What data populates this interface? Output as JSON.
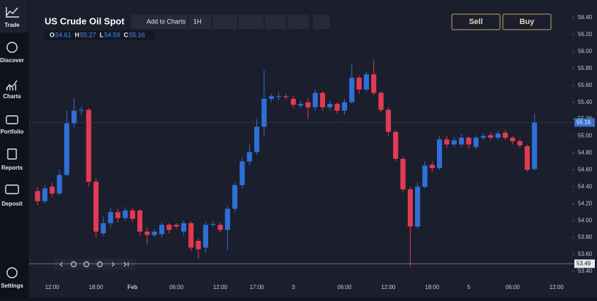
{
  "sidebar": {
    "items": [
      "Trade",
      "Discover",
      "Charts",
      "Portfolio",
      "Reports",
      "Deposit"
    ],
    "settings": "Settings"
  },
  "header": {
    "title": "US Crude Oil Spot",
    "add_button": "Add to Charts",
    "interval": "1H",
    "sell": "Sell",
    "buy": "Buy",
    "ohlc": [
      {
        "key": "O",
        "value": "54.61"
      },
      {
        "key": "H",
        "value": "55.27"
      },
      {
        "key": "L",
        "value": "54.59"
      },
      {
        "key": "C",
        "value": "55.16"
      }
    ]
  },
  "chart_data": {
    "type": "candlestick",
    "up_color": "#2f6fd8",
    "down_color": "#e23a52",
    "categories": [
      null,
      null,
      "12:00",
      null,
      null,
      null,
      null,
      null,
      "18:00",
      null,
      null,
      null,
      null,
      "Feb",
      null,
      null,
      null,
      null,
      null,
      "06:00",
      null,
      null,
      null,
      null,
      null,
      "12:00",
      null,
      null,
      null,
      null,
      "17:00",
      null,
      null,
      null,
      null,
      "3",
      null,
      null,
      null,
      null,
      null,
      null,
      "06:00",
      null,
      null,
      null,
      null,
      null,
      "12:00",
      null,
      null,
      null,
      null,
      null,
      "18:00",
      null,
      null,
      null,
      null,
      "5",
      null,
      null,
      null,
      null,
      null,
      "06:00",
      null,
      null,
      null,
      null,
      null,
      "12:00"
    ],
    "open": [
      54.35,
      54.23,
      54.4,
      54.32,
      54.54,
      55.15,
      55.3,
      55.31,
      54.46,
      53.85,
      53.97,
      54.1,
      54.03,
      54.12,
      54.12,
      53.87,
      53.83,
      53.84,
      53.95,
      53.95,
      53.87,
      53.97,
      53.76,
      53.68,
      53.95,
      53.95,
      53.89,
      54.14,
      54.42,
      54.7,
      54.81,
      55.11,
      55.44,
      55.46,
      55.47,
      55.44,
      55.36,
      55.4,
      55.34,
      55.51,
      55.34,
      55.38,
      55.3,
      55.4,
      55.69,
      55.55,
      55.73,
      55.51,
      55.31,
      55.05,
      54.73,
      54.37,
      53.93,
      54.4,
      54.66,
      54.62,
      54.96,
      54.9,
      54.9,
      54.98,
      54.87,
      54.98,
      55.01,
      54.98,
      55.04,
      54.98,
      54.94,
      54.88,
      54.61,
      null,
      null,
      null
    ],
    "high": [
      54.4,
      54.42,
      54.45,
      54.6,
      55.3,
      55.45,
      55.35,
      55.33,
      54.5,
      54.05,
      54.15,
      54.14,
      54.16,
      54.15,
      54.14,
      53.92,
      53.9,
      53.98,
      53.97,
      53.97,
      54.0,
      53.99,
      53.8,
      53.98,
      54.0,
      53.98,
      54.18,
      54.45,
      54.75,
      54.9,
      55.2,
      55.78,
      55.5,
      55.52,
      55.5,
      55.48,
      55.42,
      55.45,
      55.55,
      55.53,
      55.42,
      55.4,
      55.44,
      55.85,
      55.72,
      55.76,
      55.9,
      55.53,
      55.34,
      55.07,
      54.76,
      54.4,
      54.45,
      54.7,
      54.7,
      55.0,
      55.0,
      54.99,
      55.02,
      55.0,
      55.01,
      55.03,
      55.04,
      55.06,
      55.07,
      55.0,
      54.96,
      54.9,
      55.27,
      null,
      null,
      null
    ],
    "low": [
      54.18,
      54.2,
      54.28,
      54.3,
      54.52,
      55.1,
      55.25,
      54.4,
      53.8,
      53.82,
      53.92,
      53.98,
      54.0,
      53.98,
      53.82,
      53.72,
      53.8,
      53.8,
      53.85,
      53.9,
      53.82,
      53.64,
      53.55,
      53.62,
      53.92,
      53.86,
      53.65,
      54.1,
      54.38,
      54.65,
      54.78,
      55.0,
      55.4,
      55.42,
      55.43,
      55.33,
      55.33,
      55.2,
      55.3,
      55.3,
      55.3,
      55.26,
      55.25,
      55.38,
      55.5,
      55.52,
      55.48,
      55.28,
      55.0,
      54.7,
      54.33,
      53.45,
      53.9,
      54.38,
      54.58,
      54.6,
      54.86,
      54.87,
      54.87,
      54.85,
      54.84,
      54.95,
      54.95,
      54.96,
      54.95,
      54.9,
      54.86,
      54.58,
      54.59,
      null,
      null,
      null
    ],
    "close": [
      54.23,
      54.38,
      54.32,
      54.54,
      55.15,
      55.3,
      55.31,
      54.46,
      53.87,
      53.97,
      54.1,
      54.03,
      54.12,
      54.02,
      53.87,
      53.83,
      53.87,
      53.95,
      53.89,
      53.93,
      53.97,
      53.68,
      53.66,
      53.95,
      53.96,
      53.89,
      54.14,
      54.42,
      54.7,
      54.81,
      55.11,
      55.44,
      55.47,
      55.47,
      55.46,
      55.37,
      55.38,
      55.34,
      55.51,
      55.34,
      55.38,
      55.3,
      55.4,
      55.69,
      55.55,
      55.73,
      55.51,
      55.31,
      55.05,
      54.73,
      54.37,
      53.93,
      54.4,
      54.65,
      54.62,
      54.96,
      54.9,
      54.95,
      54.98,
      54.9,
      54.98,
      55.0,
      54.98,
      55.03,
      54.98,
      54.94,
      54.89,
      54.6,
      55.16,
      null,
      null,
      null
    ],
    "ylim": [
      53.4,
      56.4
    ],
    "yticks": [
      {
        "value": 56.4,
        "label": "56.40"
      },
      {
        "value": 56.2,
        "label": "56.20"
      },
      {
        "value": 56.0,
        "label": "56.00"
      },
      {
        "value": 55.8,
        "label": "55.80"
      },
      {
        "value": 55.6,
        "label": "55.60"
      },
      {
        "value": 55.4,
        "label": "55.40"
      },
      {
        "value": 55.2,
        "label": "55.20"
      },
      {
        "value": 55.0,
        "label": "55.00"
      },
      {
        "value": 54.8,
        "label": "54.80"
      },
      {
        "value": 54.6,
        "label": "54.60"
      },
      {
        "value": 54.4,
        "label": "54.40"
      },
      {
        "value": 54.2,
        "label": "54.20"
      },
      {
        "value": 54.0,
        "label": "54.00"
      },
      {
        "value": 53.8,
        "label": "53.80"
      },
      {
        "value": 53.6,
        "label": "53.60"
      },
      {
        "value": 53.4,
        "label": "53.40"
      }
    ],
    "last_price": {
      "value": 55.16,
      "label": "55.16"
    },
    "crosshair_price": {
      "value": 53.49,
      "label": "53.49"
    }
  }
}
